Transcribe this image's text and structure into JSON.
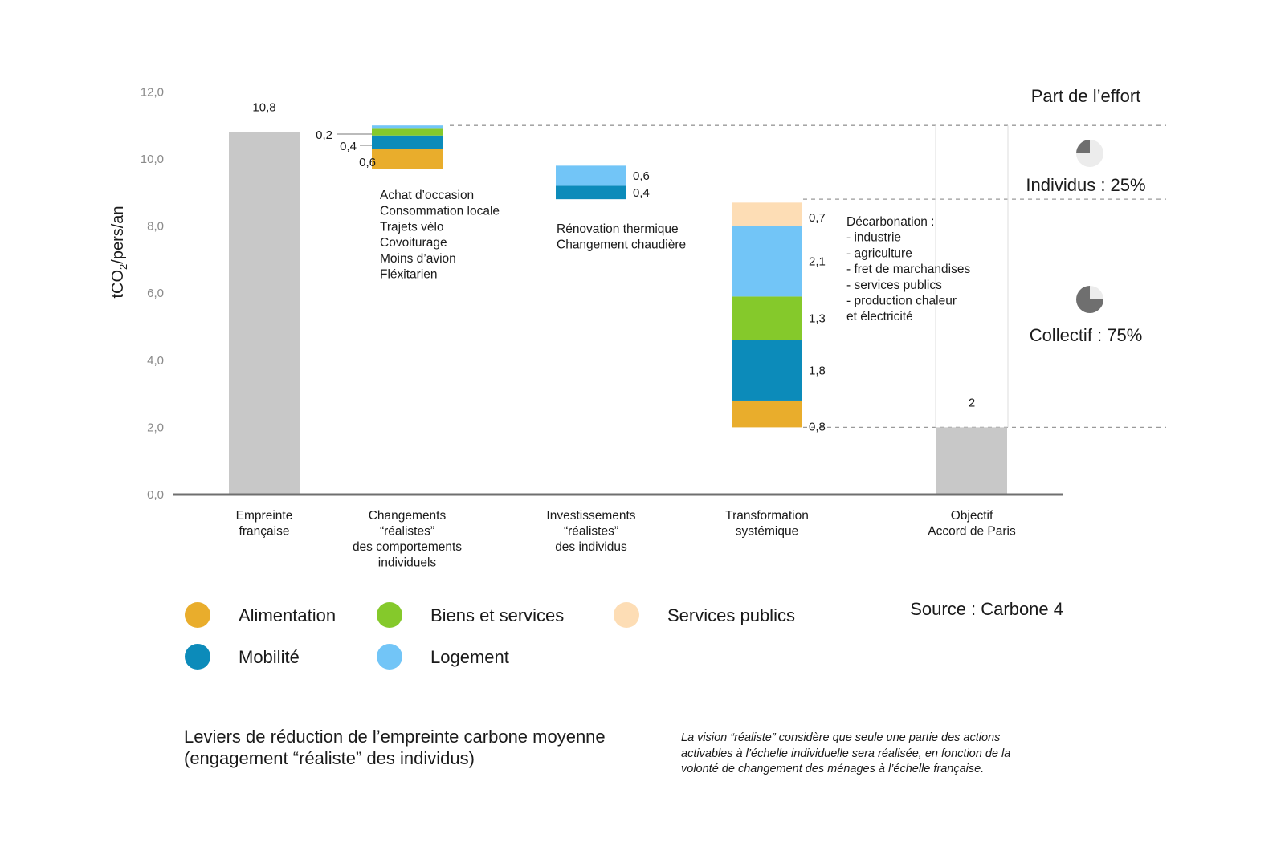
{
  "chart_data": {
    "type": "bar",
    "subtype": "waterfall",
    "ylabel_main": "tCO",
    "ylabel_sub": "2",
    "ylabel_rest": "/pers/an",
    "ylim": [
      0,
      12
    ],
    "yticks": [
      "0,0",
      "2,0",
      "4,0",
      "6,0",
      "8,0",
      "10,0",
      "12,0"
    ],
    "grid": false,
    "categories": [
      {
        "lines": [
          "Empreinte",
          "française"
        ]
      },
      {
        "lines": [
          "Changements",
          "“réalistes”",
          "des comportements",
          "individuels"
        ]
      },
      {
        "lines": [
          "Investissements",
          "“réalistes”",
          "des individus"
        ]
      },
      {
        "lines": [
          "Transformation",
          "systémique"
        ]
      },
      {
        "lines": [
          "Objectif",
          "Accord de Paris"
        ]
      }
    ],
    "totals": [
      {
        "category_index": 0,
        "value": 10.8,
        "label": "10,8"
      },
      {
        "category_index": 4,
        "value": 2,
        "label": "2"
      }
    ],
    "series": [
      {
        "name": "Alimentation",
        "color": "#E9AD2C"
      },
      {
        "name": "Mobilité",
        "color": "#0C8BBA"
      },
      {
        "name": "Biens et services",
        "color": "#85C92B"
      },
      {
        "name": "Logement",
        "color": "#72C5F7"
      },
      {
        "name": "Services publics",
        "color": "#FDDDB5"
      }
    ],
    "segments": [
      {
        "category_index": 1,
        "series": "Alimentation",
        "bottom": 9.7,
        "value": 0.6,
        "label": "0,6"
      },
      {
        "category_index": 1,
        "series": "Mobilité",
        "bottom": 10.3,
        "value": 0.4,
        "label": "0,4"
      },
      {
        "category_index": 1,
        "series": "Biens et services",
        "bottom": 10.7,
        "value": 0.2,
        "label": "0,2"
      },
      {
        "category_index": 1,
        "series": "Logement",
        "bottom": 10.9,
        "value": 0.1,
        "label": ""
      },
      {
        "category_index": 2,
        "series": "Mobilité",
        "bottom": 8.8,
        "value": 0.4,
        "label": "0,4"
      },
      {
        "category_index": 2,
        "series": "Logement",
        "bottom": 9.2,
        "value": 0.6,
        "label": "0,6"
      },
      {
        "category_index": 3,
        "series": "Alimentation",
        "bottom": 2.0,
        "value": 0.8,
        "label": "0,8"
      },
      {
        "category_index": 3,
        "series": "Mobilité",
        "bottom": 2.8,
        "value": 1.8,
        "label": "1,8"
      },
      {
        "category_index": 3,
        "series": "Biens et services",
        "bottom": 4.6,
        "value": 1.3,
        "label": "1,3"
      },
      {
        "category_index": 3,
        "series": "Logement",
        "bottom": 5.9,
        "value": 2.1,
        "label": "2,1"
      },
      {
        "category_index": 3,
        "series": "Services publics",
        "bottom": 8.0,
        "value": 0.7,
        "label": "0,7"
      }
    ],
    "annotations": [
      {
        "category_index": 1,
        "lines": [
          "Achat d’occasion",
          "Consommation locale",
          "Trajets vélo",
          "Covoiturage",
          "Moins d’avion",
          "Fléxitarien"
        ]
      },
      {
        "category_index": 2,
        "lines": [
          "Rénovation thermique",
          "Changement chaudière"
        ]
      },
      {
        "category_index": 3,
        "lines": [
          "Décarbonation :",
          "- industrie",
          "- agriculture",
          "- fret de marchandises",
          "- services publics",
          "- production chaleur",
          "  et électricité"
        ]
      }
    ],
    "reference_lines": [
      11.0,
      8.8,
      2.0
    ],
    "effort": {
      "title": "Part de l’effort",
      "parts": [
        {
          "label": "Individus : 25%",
          "share": 0.25
        },
        {
          "label": "Collectif : 75%",
          "share": 0.75
        }
      ]
    },
    "legend": {
      "placement": "bottom-left",
      "items": [
        "Alimentation",
        "Biens et services",
        "Services publics",
        "Mobilité",
        "Logement"
      ]
    },
    "source": "Source : Carbone 4"
  },
  "caption": {
    "line1": "Leviers de réduction de l’empreinte carbone moyenne",
    "line2": "(engagement “réaliste” des individus)"
  },
  "footnote": {
    "line1": "La vision “réaliste” considère que seule une partie des actions",
    "line2": "activables à l’échelle individuelle sera réalisée, en fonction de la",
    "line3": "volonté de changement des ménages à l’échelle française."
  }
}
